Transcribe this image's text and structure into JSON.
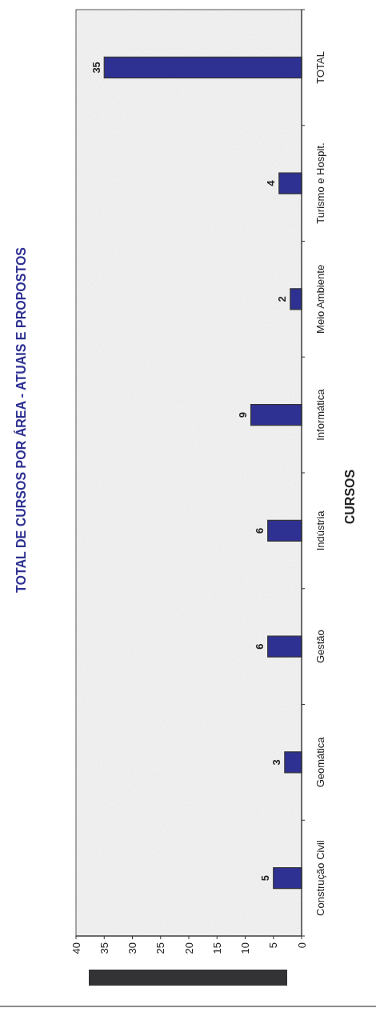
{
  "chart_data": {
    "type": "bar",
    "orientation": "horizontal",
    "title": "TOTAL DE CURSOS POR ÁREA - ATUAIS E PROPOSTOS",
    "ylabel": "CURSOS",
    "categories": [
      "TOTAL",
      "Turismo e Hospit.",
      "Meio Ambiente",
      "Informática",
      "Indústria",
      "Gestão",
      "Geomática",
      "Construção Civil"
    ],
    "values": [
      35,
      4,
      2,
      9,
      6,
      6,
      3,
      5
    ],
    "color": "#2e3192",
    "xlim": [
      40,
      0
    ],
    "xticks": [
      40,
      35,
      30,
      25,
      20,
      15,
      10,
      5,
      0
    ],
    "data_labels": true
  }
}
